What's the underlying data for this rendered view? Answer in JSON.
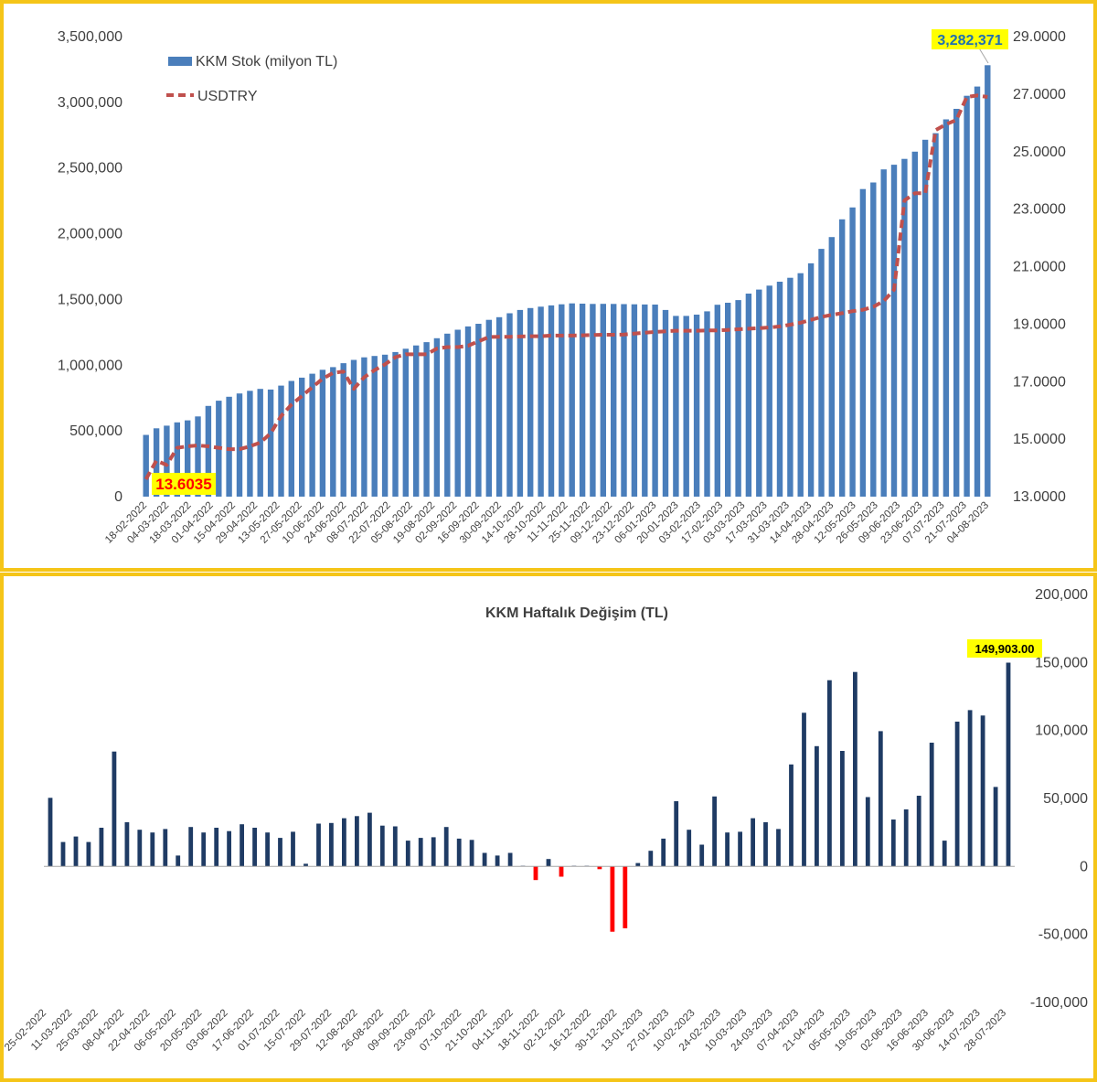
{
  "colors": {
    "frame": "#f5c518",
    "stock_bar": "#4a7ebb",
    "usd_line": "#c0504d",
    "weekly_pos": "#1f3b64",
    "weekly_neg": "#ff0000",
    "callout_bg": "#ffff00",
    "callout_red": "#ff0000",
    "callout_blue": "#1f6fb2"
  },
  "chart_data": [
    {
      "type": "bar",
      "title": "",
      "legend": {
        "position": "top-left",
        "bar_label": "KKM Stok (milyon TL)",
        "line_label": "USDTRY"
      },
      "left_axis": {
        "ylim": [
          0,
          3500000
        ],
        "ticks": [
          "0",
          "500,000",
          "1,000,000",
          "1,500,000",
          "2,000,000",
          "2,500,000",
          "3,000,000",
          "3,500,000"
        ]
      },
      "right_axis": {
        "ylim": [
          13.0,
          29.0
        ],
        "ticks": [
          "13.0000",
          "15.0000",
          "17.0000",
          "19.0000",
          "21.0000",
          "23.0000",
          "25.0000",
          "27.0000",
          "29.0000"
        ]
      },
      "x_tick_labels": [
        "18-02-2022",
        "04-03-2022",
        "18-03-2022",
        "01-04-2022",
        "15-04-2022",
        "29-04-2022",
        "13-05-2022",
        "27-05-2022",
        "10-06-2022",
        "24-06-2022",
        "08-07-2022",
        "22-07-2022",
        "05-08-2022",
        "19-08-2022",
        "02-09-2022",
        "16-09-2022",
        "30-09-2022",
        "14-10-2022",
        "28-10-2022",
        "11-11-2022",
        "25-11-2022",
        "09-12-2022",
        "23-12-2022",
        "06-01-2023",
        "20-01-2023",
        "03-02-2023",
        "17-02-2023",
        "03-03-2023",
        "17-03-2023",
        "31-03-2023",
        "14-04-2023",
        "28-04-2023",
        "12-05-2023",
        "26-05-2023",
        "09-06-2023",
        "23-06-2023",
        "07-07-2023",
        "21-07-2023",
        "04-08-2023"
      ],
      "series": [
        {
          "name": "KKM Stok (milyon TL)",
          "kind": "bar",
          "axis": "left",
          "values": [
            470000,
            520000,
            540000,
            565000,
            580000,
            610000,
            690000,
            730000,
            760000,
            785000,
            805000,
            820000,
            815000,
            845000,
            880000,
            905000,
            935000,
            965000,
            985000,
            1015000,
            1040000,
            1060000,
            1070000,
            1080000,
            1100000,
            1125000,
            1150000,
            1175000,
            1205000,
            1240000,
            1270000,
            1295000,
            1315000,
            1345000,
            1365000,
            1395000,
            1420000,
            1435000,
            1445000,
            1455000,
            1463000,
            1470000,
            1468000,
            1466000,
            1467000,
            1466000,
            1465000,
            1463000,
            1462000,
            1461000,
            1420000,
            1375000,
            1375000,
            1385000,
            1410000,
            1460000,
            1475000,
            1495000,
            1545000,
            1575000,
            1605000,
            1635000,
            1665000,
            1700000,
            1775000,
            1885000,
            1975000,
            2110000,
            2200000,
            2340000,
            2390000,
            2490000,
            2525000,
            2570000,
            2625000,
            2715000,
            2765000,
            2870000,
            2950000,
            3050000,
            3120000,
            3282371
          ]
        },
        {
          "name": "USDTRY",
          "kind": "line",
          "axis": "right",
          "values": [
            13.6035,
            14.25,
            14.1,
            14.7,
            14.75,
            14.78,
            14.75,
            14.7,
            14.65,
            14.65,
            14.75,
            14.88,
            15.2,
            15.8,
            16.2,
            16.5,
            16.8,
            17.1,
            17.3,
            17.35,
            16.75,
            17.15,
            17.4,
            17.6,
            17.85,
            17.95,
            17.95,
            17.95,
            18.15,
            18.2,
            18.2,
            18.25,
            18.4,
            18.55,
            18.56,
            18.56,
            18.57,
            18.58,
            18.58,
            18.6,
            18.6,
            18.6,
            18.61,
            18.62,
            18.63,
            18.63,
            18.64,
            18.67,
            18.7,
            18.73,
            18.75,
            18.77,
            18.77,
            18.77,
            18.78,
            18.78,
            18.8,
            18.82,
            18.84,
            18.86,
            18.88,
            18.92,
            18.98,
            19.05,
            19.15,
            19.25,
            19.32,
            19.38,
            19.45,
            19.5,
            19.6,
            19.8,
            20.2,
            23.3,
            23.55,
            23.55,
            25.75,
            25.95,
            26.1,
            26.9,
            26.95,
            26.9
          ]
        }
      ],
      "annotations": [
        {
          "text": "3,282,371",
          "target": "last KKM Stok bar"
        },
        {
          "text": "13.6035",
          "target": "first USDTRY point"
        }
      ]
    },
    {
      "type": "bar",
      "title": "KKM Haftalık Değişim (TL)",
      "ylim": [
        -100000,
        200000
      ],
      "y_ticks": [
        "-100,000",
        "-50,000",
        "0",
        "50,000",
        "100,000",
        "150,000",
        "200,000"
      ],
      "x_tick_labels": [
        "25-02-2022",
        "11-03-2022",
        "25-03-2022",
        "08-04-2022",
        "22-04-2022",
        "06-05-2022",
        "20-05-2022",
        "03-06-2022",
        "17-06-2022",
        "01-07-2022",
        "15-07-2022",
        "29-07-2022",
        "12-08-2022",
        "26-08-2022",
        "09-09-2022",
        "23-09-2022",
        "07-10-2022",
        "21-10-2022",
        "04-11-2022",
        "18-11-2022",
        "02-12-2022",
        "16-12-2022",
        "30-12-2022",
        "13-01-2023",
        "27-01-2023",
        "10-02-2023",
        "24-02-2023",
        "10-03-2023",
        "24-03-2023",
        "07-04-2023",
        "21-04-2023",
        "05-05-2023",
        "19-05-2023",
        "02-06-2023",
        "16-06-2023",
        "30-06-2023",
        "14-07-2023",
        "28-07-2023"
      ],
      "series": [
        {
          "name": "KKM Haftalık Değişim (TL)",
          "values": [
            50500,
            18000,
            22000,
            18000,
            28500,
            84500,
            32500,
            27000,
            25000,
            27500,
            8000,
            29000,
            25000,
            28500,
            26000,
            31000,
            28500,
            25000,
            21000,
            25500,
            2000,
            31500,
            32000,
            35500,
            37000,
            39500,
            30000,
            29500,
            19000,
            21000,
            21500,
            29000,
            20500,
            19500,
            10000,
            8000,
            10000,
            500,
            -10000,
            5500,
            -7500,
            500,
            500,
            -2000,
            -48000,
            -45500,
            2500,
            11500,
            20500,
            48000,
            27000,
            16000,
            51500,
            25000,
            25500,
            35500,
            32500,
            27500,
            75000,
            113000,
            88500,
            137000,
            85000,
            143000,
            51000,
            99500,
            34500,
            42000,
            52000,
            91000,
            19000,
            106500,
            115000,
            111000,
            58500,
            149903
          ]
        }
      ],
      "annotations": [
        {
          "text": "149,903.00",
          "target": "last bar"
        }
      ]
    }
  ]
}
